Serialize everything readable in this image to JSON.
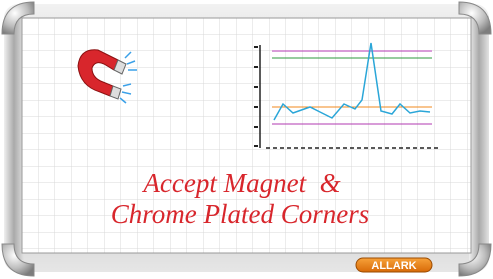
{
  "caption": {
    "line1": "Accept Magnet  &",
    "line2": "Chrome Plated Corners"
  },
  "brand": "ALLARK"
}
